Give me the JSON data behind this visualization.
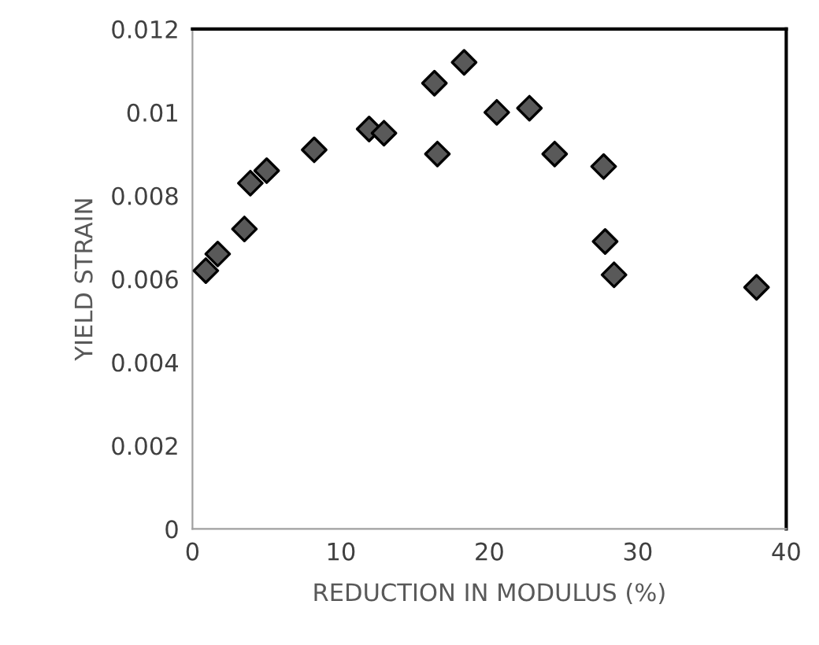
{
  "chart_data": {
    "type": "scatter",
    "xlabel": "REDUCTION IN MODULUS (%)",
    "ylabel": "YIELD STRAIN",
    "x": [
      0.9,
      1.7,
      3.5,
      3.9,
      5.0,
      8.2,
      11.9,
      12.9,
      16.3,
      18.3,
      20.5,
      22.7,
      16.5,
      24.4,
      27.7,
      27.8,
      28.4,
      38.0
    ],
    "values": [
      0.0062,
      0.0066,
      0.0072,
      0.0083,
      0.0086,
      0.0091,
      0.0096,
      0.0095,
      0.0107,
      0.0112,
      0.01,
      0.0101,
      0.009,
      0.009,
      0.0087,
      0.0069,
      0.0061,
      0.0058
    ],
    "color": "#595959",
    "marker": "diamond",
    "xlim": [
      0,
      40
    ],
    "xticks": [
      0,
      10,
      20,
      30,
      40
    ],
    "ylim": [
      0,
      0.012
    ],
    "yticks": [
      0,
      0.002,
      0.004,
      0.006,
      0.008,
      0.01,
      0.012
    ],
    "grid": false,
    "legend": false
  }
}
